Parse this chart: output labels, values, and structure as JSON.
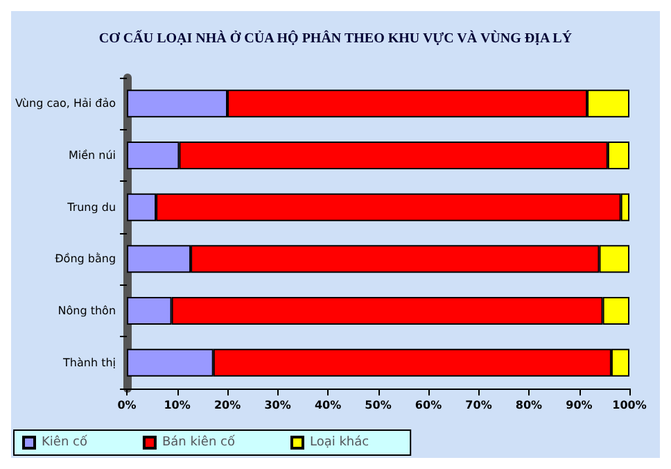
{
  "chart_data": {
    "type": "bar",
    "orientation": "horizontal",
    "stacked": true,
    "title": "CƠ CẤU LOẠI NHÀ Ở CỦA HỘ PHÂN THEO KHU VỰC VÀ VÙNG ĐỊA LÝ",
    "categories": [
      "Vùng cao, Hải đảo",
      "Miền núi",
      "Trung du",
      "Đồng bằng",
      "Nông thôn",
      "Thành thị"
    ],
    "series": [
      {
        "name": "Kiên cố",
        "color": "#9999ff",
        "values": [
          20,
          10.4,
          5.8,
          12.7,
          8.9,
          17.2
        ]
      },
      {
        "name": "Bán kiên cố",
        "color": "#ff0000",
        "values": [
          71.6,
          85.3,
          92.5,
          81.3,
          85.8,
          79.2
        ]
      },
      {
        "name": "Loại khác",
        "color": "#ffff00",
        "values": [
          8.4,
          4.3,
          1.7,
          6,
          5.3,
          3.6
        ]
      }
    ],
    "xlim": [
      0,
      100
    ],
    "xticks": [
      {
        "value": 0,
        "label": "0%"
      },
      {
        "value": 10,
        "label": "10%"
      },
      {
        "value": 20,
        "label": "20%"
      },
      {
        "value": 30,
        "label": "30%"
      },
      {
        "value": 40,
        "label": "40%"
      },
      {
        "value": 50,
        "label": "50%"
      },
      {
        "value": 60,
        "label": "60%"
      },
      {
        "value": 70,
        "label": "70%"
      },
      {
        "value": 80,
        "label": "80%"
      },
      {
        "value": 90,
        "label": "90%"
      },
      {
        "value": 100,
        "label": "100%"
      }
    ],
    "grid": false,
    "legend": "bottom left"
  }
}
